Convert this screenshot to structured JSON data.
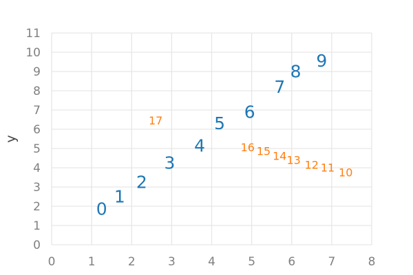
{
  "chart_data": {
    "type": "scatter",
    "title": "",
    "xlabel": "",
    "ylabel": "y",
    "xlim": [
      0,
      8
    ],
    "ylim": [
      0,
      11
    ],
    "x_ticks": [
      "0",
      "1",
      "2",
      "3",
      "4",
      "5",
      "6",
      "7",
      "8"
    ],
    "y_ticks": [
      "0",
      "1",
      "2",
      "3",
      "4",
      "5",
      "6",
      "7",
      "8",
      "9",
      "10",
      "11"
    ],
    "grid": true,
    "series": [
      {
        "color": "#1f77b4",
        "label_size": "large",
        "points": [
          {
            "label": "0",
            "x": 1.25,
            "y": 1.85
          },
          {
            "label": "1",
            "x": 1.7,
            "y": 2.5
          },
          {
            "label": "2",
            "x": 2.25,
            "y": 3.25
          },
          {
            "label": "3",
            "x": 2.95,
            "y": 4.25
          },
          {
            "label": "4",
            "x": 3.7,
            "y": 5.15
          },
          {
            "label": "5",
            "x": 4.2,
            "y": 6.3
          },
          {
            "label": "6",
            "x": 4.95,
            "y": 6.9
          },
          {
            "label": "7",
            "x": 5.7,
            "y": 8.2
          },
          {
            "label": "8",
            "x": 6.1,
            "y": 9.0
          },
          {
            "label": "9",
            "x": 6.75,
            "y": 9.55
          }
        ]
      },
      {
        "color": "#ff7f0e",
        "label_size": "small",
        "points": [
          {
            "label": "10",
            "x": 7.35,
            "y": 3.75
          },
          {
            "label": "11",
            "x": 6.9,
            "y": 4.0
          },
          {
            "label": "12",
            "x": 6.5,
            "y": 4.15
          },
          {
            "label": "13",
            "x": 6.05,
            "y": 4.4
          },
          {
            "label": "14",
            "x": 5.7,
            "y": 4.6
          },
          {
            "label": "15",
            "x": 5.3,
            "y": 4.85
          },
          {
            "label": "16",
            "x": 4.9,
            "y": 5.05
          },
          {
            "label": "17",
            "x": 2.6,
            "y": 6.45
          }
        ]
      }
    ]
  }
}
